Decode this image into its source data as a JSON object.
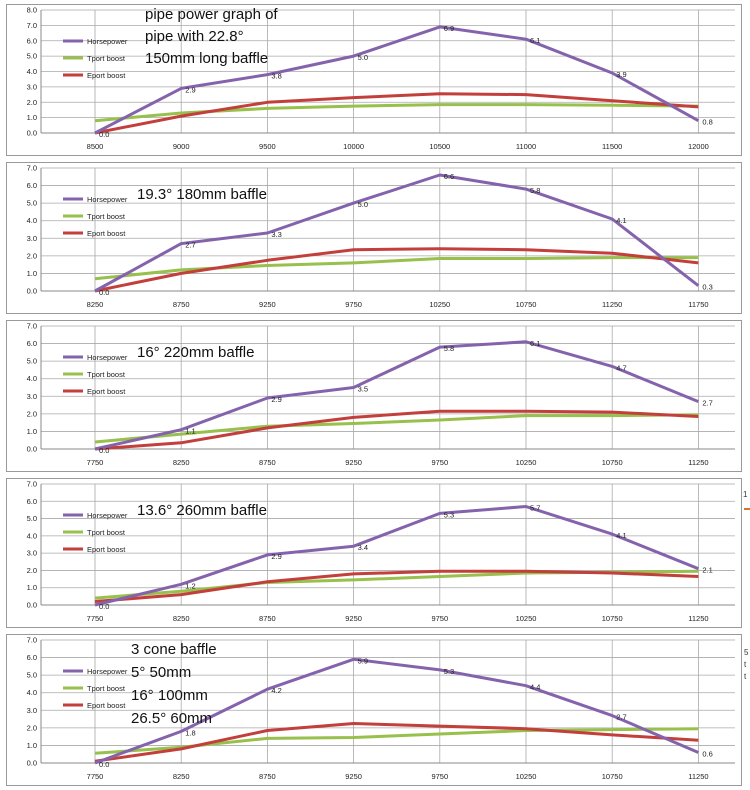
{
  "colors": {
    "horsepower": "#8563ac",
    "tport": "#97c04c",
    "eport": "#c23f3b",
    "grid": "#a9a9a9",
    "axis": "#8a8a8a"
  },
  "side_fragments": [
    "1",
    "5",
    "t",
    "t"
  ],
  "chart_data": [
    {
      "type": "line",
      "title_lines": [
        "pipe power graph of",
        "pipe with 22.8°",
        "150mm long baffle"
      ],
      "categories": [
        "8500",
        "9000",
        "9500",
        "10000",
        "10500",
        "11000",
        "11500",
        "12000"
      ],
      "ylim": [
        0,
        8
      ],
      "yticks": [
        "0.0",
        "1.0",
        "2.0",
        "3.0",
        "4.0",
        "5.0",
        "6.0",
        "7.0",
        "8.0"
      ],
      "legend": [
        "Horsepower",
        "Tport boost",
        "Eport boost"
      ],
      "series": [
        {
          "name": "Horsepower",
          "values": [
            0.0,
            2.9,
            3.8,
            5.0,
            6.9,
            6.1,
            3.9,
            0.8
          ],
          "labels": [
            "0.0",
            "2.9",
            "3.8",
            "5.0",
            "6.9",
            "6.1",
            "3.9",
            "0.8"
          ]
        },
        {
          "name": "Tport boost",
          "values": [
            0.8,
            1.3,
            1.6,
            1.75,
            1.85,
            1.85,
            1.8,
            1.75
          ]
        },
        {
          "name": "Eport boost",
          "values": [
            0.0,
            1.1,
            2.0,
            2.3,
            2.55,
            2.5,
            2.1,
            1.7
          ]
        }
      ]
    },
    {
      "type": "line",
      "title_lines": [
        "19.3° 180mm baffle"
      ],
      "categories": [
        "8250",
        "8750",
        "9250",
        "9750",
        "10250",
        "10750",
        "11250",
        "11750"
      ],
      "ylim": [
        0,
        7
      ],
      "yticks": [
        "0.0",
        "1.0",
        "2.0",
        "3.0",
        "4.0",
        "5.0",
        "6.0",
        "7.0"
      ],
      "legend": [
        "Horsepower",
        "Tport boost",
        "Eport boost"
      ],
      "series": [
        {
          "name": "Horsepower",
          "values": [
            0.0,
            2.7,
            3.3,
            5.0,
            6.6,
            5.8,
            4.1,
            0.3
          ],
          "labels": [
            "0.0",
            "2.7",
            "3.3",
            "5.0",
            "6.6",
            "5.8",
            "4.1",
            "0.3"
          ]
        },
        {
          "name": "Tport boost",
          "values": [
            0.7,
            1.2,
            1.45,
            1.6,
            1.85,
            1.85,
            1.9,
            1.9
          ]
        },
        {
          "name": "Eport boost",
          "values": [
            0.0,
            1.0,
            1.75,
            2.35,
            2.4,
            2.35,
            2.15,
            1.6
          ]
        }
      ]
    },
    {
      "type": "line",
      "title_lines": [
        "16° 220mm baffle"
      ],
      "categories": [
        "7750",
        "8250",
        "8750",
        "9250",
        "9750",
        "10250",
        "10750",
        "11250"
      ],
      "ylim": [
        0,
        7
      ],
      "yticks": [
        "0.0",
        "1.0",
        "2.0",
        "3.0",
        "4.0",
        "5.0",
        "6.0",
        "7.0"
      ],
      "legend": [
        "Horsepower",
        "Tport boost",
        "Eport boost"
      ],
      "series": [
        {
          "name": "Horsepower",
          "values": [
            0.0,
            1.1,
            2.9,
            3.5,
            5.8,
            6.1,
            4.7,
            2.7
          ],
          "labels": [
            "0.0",
            "1.1",
            "2.9",
            "3.5",
            "5.8",
            "6.1",
            "4.7",
            "2.7"
          ]
        },
        {
          "name": "Tport boost",
          "values": [
            0.4,
            0.85,
            1.3,
            1.45,
            1.65,
            1.9,
            1.9,
            1.95
          ]
        },
        {
          "name": "Eport boost",
          "values": [
            0.0,
            0.35,
            1.2,
            1.8,
            2.15,
            2.15,
            2.1,
            1.85
          ]
        }
      ]
    },
    {
      "type": "line",
      "title_lines": [
        "13.6° 260mm baffle"
      ],
      "categories": [
        "7750",
        "8250",
        "8750",
        "9250",
        "9750",
        "10250",
        "10750",
        "11250"
      ],
      "ylim": [
        0,
        7
      ],
      "yticks": [
        "0.0",
        "1.0",
        "2.0",
        "3.0",
        "4.0",
        "5.0",
        "6.0",
        "7.0"
      ],
      "legend": [
        "Horsepower",
        "Tport boost",
        "Eport boost"
      ],
      "series": [
        {
          "name": "Horsepower",
          "values": [
            0.0,
            1.2,
            2.9,
            3.4,
            5.3,
            5.7,
            4.1,
            2.1
          ],
          "labels": [
            "0.0",
            "1.2",
            "2.9",
            "3.4",
            "5.3",
            "5.7",
            "4.1",
            "2.1"
          ]
        },
        {
          "name": "Tport boost",
          "values": [
            0.4,
            0.8,
            1.3,
            1.45,
            1.65,
            1.85,
            1.9,
            1.95
          ]
        },
        {
          "name": "Eport boost",
          "values": [
            0.2,
            0.6,
            1.35,
            1.8,
            1.95,
            1.95,
            1.85,
            1.65
          ]
        }
      ]
    },
    {
      "type": "line",
      "title_lines": [
        "3 cone baffle",
        "5° 50mm",
        "16° 100mm",
        "26.5° 60mm"
      ],
      "categories": [
        "7750",
        "8250",
        "8750",
        "9250",
        "9750",
        "10250",
        "10750",
        "11250"
      ],
      "ylim": [
        0,
        7
      ],
      "yticks": [
        "0.0",
        "1.0",
        "2.0",
        "3.0",
        "4.0",
        "5.0",
        "6.0",
        "7.0"
      ],
      "legend": [
        "Horsepower",
        "Tport boost",
        "Eport boost"
      ],
      "series": [
        {
          "name": "Horsepower",
          "values": [
            0.0,
            1.8,
            4.2,
            5.9,
            5.3,
            4.4,
            2.7,
            0.6
          ],
          "labels": [
            "0.0",
            "1.8",
            "4.2",
            "5.9",
            "5.3",
            "4.4",
            "2.7",
            "0.6"
          ]
        },
        {
          "name": "Tport boost",
          "values": [
            0.55,
            0.9,
            1.4,
            1.45,
            1.65,
            1.85,
            1.9,
            1.95
          ]
        },
        {
          "name": "Eport boost",
          "values": [
            0.1,
            0.8,
            1.85,
            2.25,
            2.1,
            1.95,
            1.6,
            1.3
          ]
        }
      ]
    }
  ]
}
